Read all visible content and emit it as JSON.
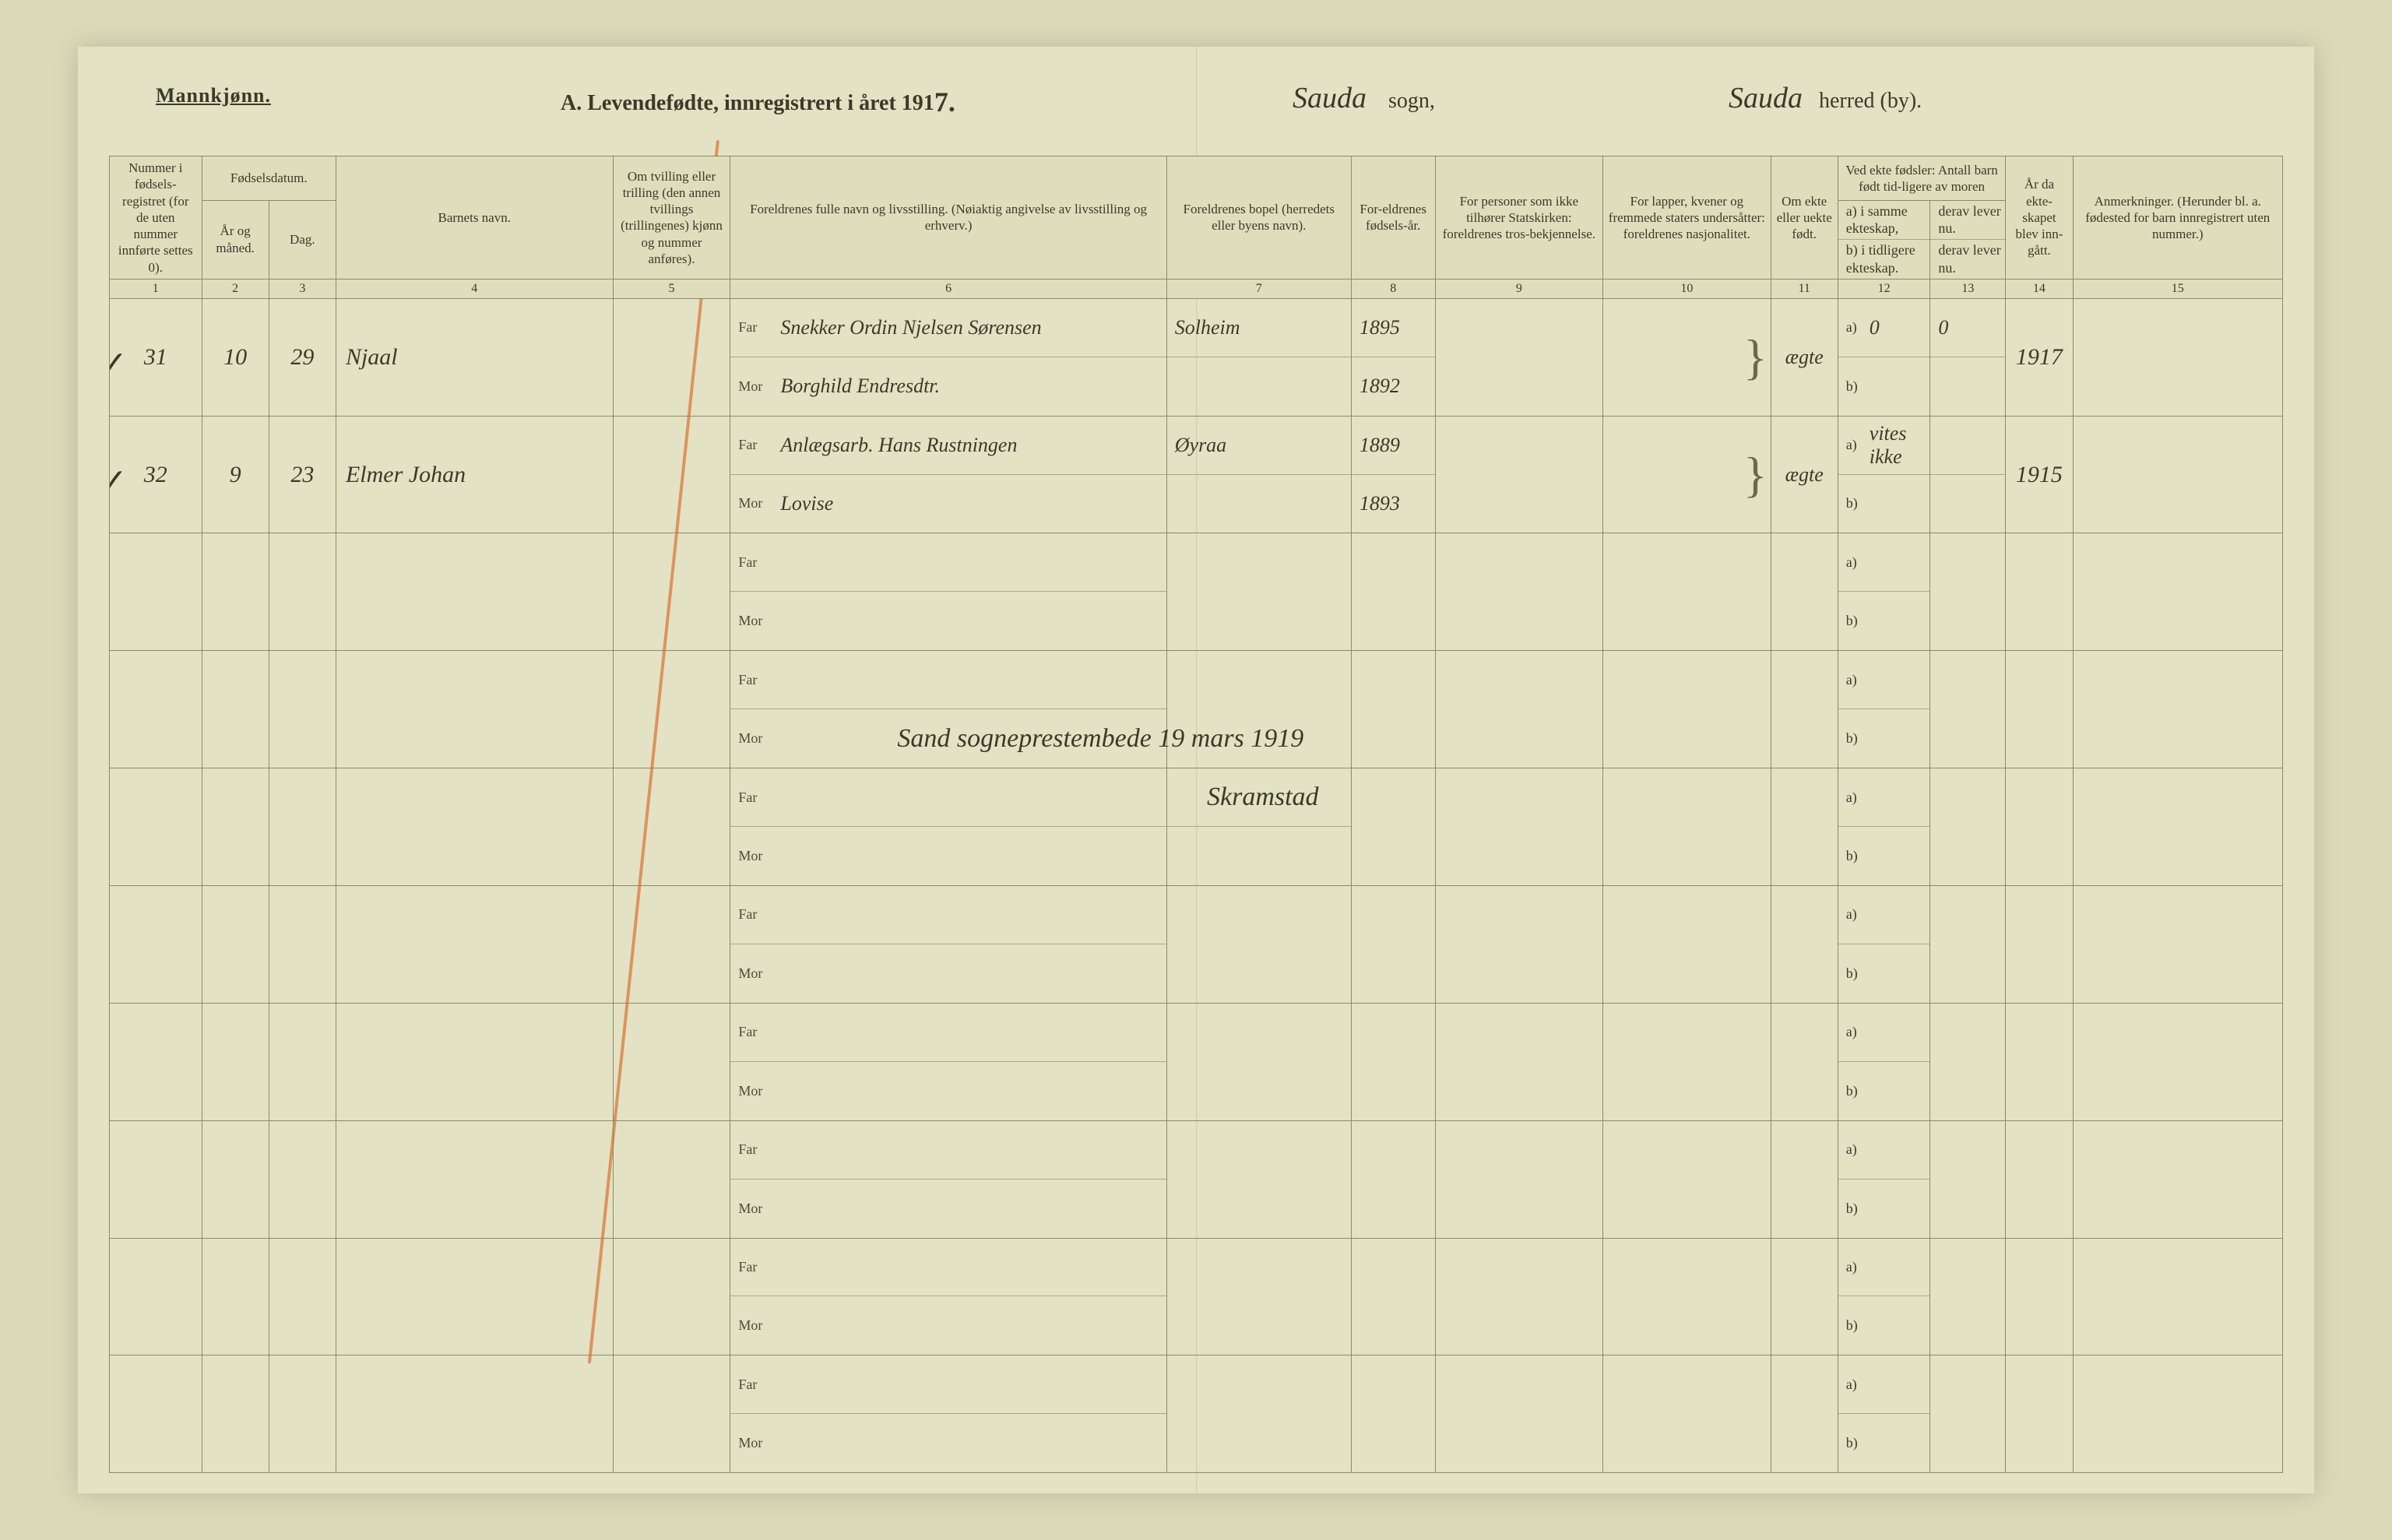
{
  "header": {
    "mannkjonn": "Mannkjønn.",
    "title_prefix": "A.  Levendefødte, innregistrert i året 191",
    "year_digit": "7.",
    "sogn_hand": "Sauda",
    "sogn_label": "sogn,",
    "herred_hand": "Sauda",
    "herred_label": "herred (by)."
  },
  "columns": {
    "c1": "Nummer i fødsels-registret (for de uten nummer innførte settes 0).",
    "c2_top": "Fødselsdatum.",
    "c2a": "År og måned.",
    "c2b": "Dag.",
    "c4": "Barnets navn.",
    "c5": "Om tvilling eller trilling (den annen tvillings (trillingenes) kjønn og nummer anføres).",
    "c6": "Foreldrenes fulle navn og livsstilling. (Nøiaktig angivelse av livsstilling og erhverv.)",
    "c7": "Foreldrenes bopel (herredets eller byens navn).",
    "c8": "For-eldrenes fødsels-år.",
    "c9": "For personer som ikke tilhører Statskirken: foreldrenes tros-bekjennelse.",
    "c10": "For lapper, kvener og fremmede staters undersåtter: foreldrenes nasjonalitet.",
    "c11": "Om ekte eller uekte født.",
    "c12_top": "Ved ekte fødsler: Antall barn født tid-ligere av moren",
    "c12a": "a) i samme ekteskap,",
    "c12b": "b) i tidligere ekteskap.",
    "c13a": "derav lever nu.",
    "c13b": "derav lever nu.",
    "c14": "År da ekte-skapet blev inn-gått.",
    "c15": "Anmerkninger. (Herunder bl. a. fødested for barn innregistrert uten nummer.)"
  },
  "colnums": [
    "1",
    "2",
    "3",
    "4",
    "5",
    "6",
    "7",
    "8",
    "9",
    "10",
    "11",
    "12",
    "13",
    "14",
    "15"
  ],
  "labels": {
    "far": "Far",
    "mor": "Mor",
    "a": "a)",
    "b": "b)"
  },
  "rows": [
    {
      "num": "31",
      "check": "✓",
      "month": "10",
      "day": "29",
      "child": "Njaal",
      "far_name": "Snekker Ordin Njelsen Sørensen",
      "mor_name": "Borghild Endresdtr.",
      "bopel": "Solheim",
      "far_year": "1895",
      "mor_year": "1892",
      "ekte": "ægte",
      "a_val": "0",
      "a_derav": "0",
      "year_married": "1917"
    },
    {
      "num": "32",
      "check": "✓",
      "month": "9",
      "day": "23",
      "child": "Elmer Johan",
      "far_name": "Anlægsarb. Hans Rustningen",
      "mor_name": "Lovise",
      "bopel": "Øyraa",
      "far_year": "1889",
      "mor_year": "1893",
      "ekte": "ægte",
      "a_val": "vites ikke",
      "a_derav": "",
      "year_married": "1915"
    }
  ],
  "annotations": {
    "signature_line": "Sand sogneprestembede   19 mars 1919",
    "place": "Skramstad"
  },
  "empty_rows": 6
}
